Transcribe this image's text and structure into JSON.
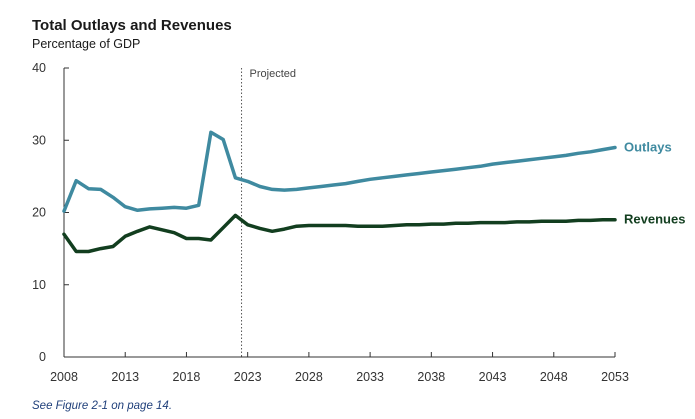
{
  "chart_data": {
    "type": "line",
    "title": "Total Outlays and Revenues",
    "subtitle": "Percentage of GDP",
    "xlabel": "",
    "ylabel": "",
    "xlim": [
      2008,
      2053
    ],
    "ylim": [
      0,
      40
    ],
    "y_ticks": [
      "0",
      "10",
      "20",
      "30",
      "40"
    ],
    "x_ticks": [
      "2008",
      "2013",
      "2018",
      "2023",
      "2028",
      "2033",
      "2038",
      "2043",
      "2048",
      "2053"
    ],
    "projection_start": 2022.5,
    "projection_label": "Projected",
    "grid": false,
    "x": [
      2008,
      2009,
      2010,
      2011,
      2012,
      2013,
      2014,
      2015,
      2016,
      2017,
      2018,
      2019,
      2020,
      2021,
      2022,
      2023,
      2024,
      2025,
      2026,
      2027,
      2028,
      2029,
      2030,
      2031,
      2032,
      2033,
      2034,
      2035,
      2036,
      2037,
      2038,
      2039,
      2040,
      2041,
      2042,
      2043,
      2044,
      2045,
      2046,
      2047,
      2048,
      2049,
      2050,
      2051,
      2052,
      2053
    ],
    "series": [
      {
        "name": "Outlays",
        "color": "#3f8aa0",
        "values": [
          20.2,
          24.4,
          23.3,
          23.2,
          22.1,
          20.8,
          20.3,
          20.5,
          20.6,
          20.7,
          20.6,
          21.0,
          31.1,
          30.1,
          24.8,
          24.3,
          23.6,
          23.2,
          23.1,
          23.2,
          23.4,
          23.6,
          23.8,
          24.0,
          24.3,
          24.6,
          24.8,
          25.0,
          25.2,
          25.4,
          25.6,
          25.8,
          26.0,
          26.2,
          26.4,
          26.7,
          26.9,
          27.1,
          27.3,
          27.5,
          27.7,
          27.9,
          28.2,
          28.4,
          28.7,
          29.0
        ]
      },
      {
        "name": "Revenues",
        "color": "#123e1f",
        "values": [
          17.0,
          14.6,
          14.6,
          15.0,
          15.3,
          16.7,
          17.4,
          18.0,
          17.6,
          17.2,
          16.4,
          16.4,
          16.2,
          17.9,
          19.6,
          18.3,
          17.8,
          17.4,
          17.7,
          18.1,
          18.2,
          18.2,
          18.2,
          18.2,
          18.1,
          18.1,
          18.1,
          18.2,
          18.3,
          18.3,
          18.4,
          18.4,
          18.5,
          18.5,
          18.6,
          18.6,
          18.6,
          18.7,
          18.7,
          18.8,
          18.8,
          18.8,
          18.9,
          18.9,
          19.0,
          19.0
        ]
      }
    ]
  },
  "footnote": "See Figure 2-1 on page 14."
}
